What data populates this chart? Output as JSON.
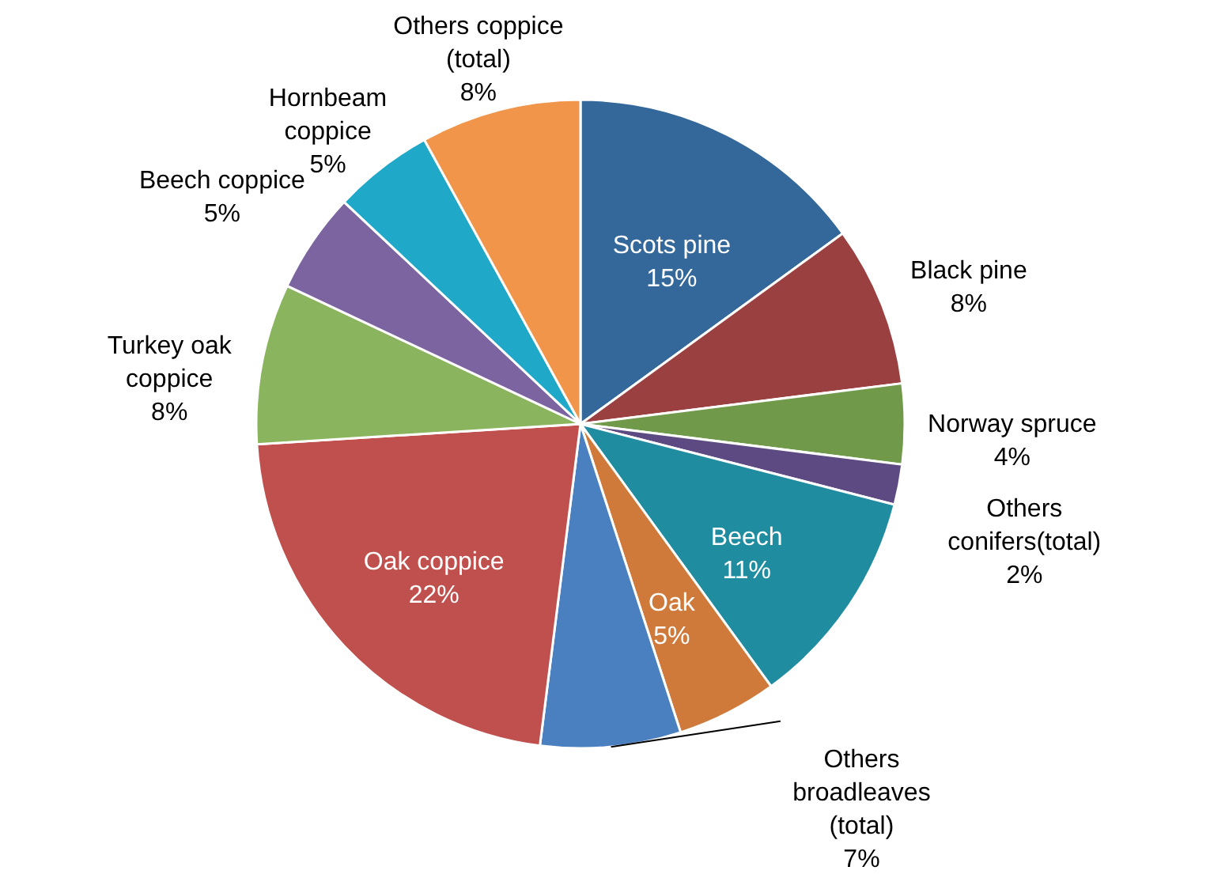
{
  "chart_data": {
    "type": "pie",
    "categories": [
      "Scots pine",
      "Black pine",
      "Norway spruce",
      "Others conifers(total)",
      "Beech",
      "Oak",
      "Others broadleaves (total)",
      "Oak coppice",
      "Turkey oak coppice",
      "Beech coppice",
      "Hornbeam coppice",
      "Others coppice (total)"
    ],
    "values": [
      15,
      8,
      4,
      2,
      11,
      5,
      7,
      22,
      8,
      5,
      5,
      8
    ],
    "value_labels": [
      "15%",
      "8%",
      "4%",
      "2%",
      "11%",
      "5%",
      "7%",
      "22%",
      "8%",
      "5%",
      "5%",
      "8%"
    ],
    "colors": [
      "#35689a",
      "#9b4040",
      "#709a4a",
      "#5d4a82",
      "#1f8ca0",
      "#cf7a3a",
      "#4a7fc0",
      "#c0504d",
      "#8ab55e",
      "#7b64a0",
      "#1fa8c8",
      "#f0954a"
    ]
  }
}
